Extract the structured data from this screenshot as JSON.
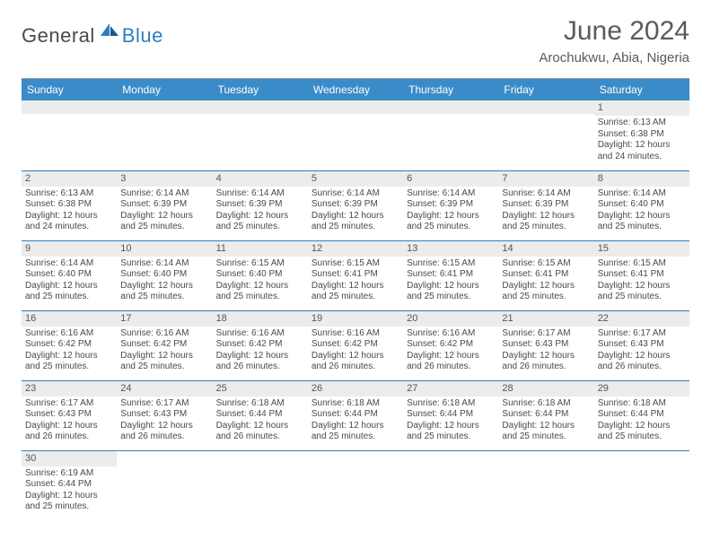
{
  "logo": {
    "dark": "General",
    "blue": "Blue"
  },
  "title": "June 2024",
  "subtitle": "Arochukwu, Abia, Nigeria",
  "colors": {
    "headerBg": "#3b8bc8",
    "headerText": "#ffffff",
    "borderBlue": "#2f7dc0",
    "dayNumBg": "#ececec",
    "bodyText": "#4a4a4a"
  },
  "dayHeaders": [
    "Sunday",
    "Monday",
    "Tuesday",
    "Wednesday",
    "Thursday",
    "Friday",
    "Saturday"
  ],
  "weeks": [
    [
      null,
      null,
      null,
      null,
      null,
      null,
      {
        "n": "1",
        "sr": "6:13 AM",
        "ss": "6:38 PM",
        "dl": "12 hours and 24 minutes."
      }
    ],
    [
      {
        "n": "2",
        "sr": "6:13 AM",
        "ss": "6:38 PM",
        "dl": "12 hours and 24 minutes."
      },
      {
        "n": "3",
        "sr": "6:14 AM",
        "ss": "6:39 PM",
        "dl": "12 hours and 25 minutes."
      },
      {
        "n": "4",
        "sr": "6:14 AM",
        "ss": "6:39 PM",
        "dl": "12 hours and 25 minutes."
      },
      {
        "n": "5",
        "sr": "6:14 AM",
        "ss": "6:39 PM",
        "dl": "12 hours and 25 minutes."
      },
      {
        "n": "6",
        "sr": "6:14 AM",
        "ss": "6:39 PM",
        "dl": "12 hours and 25 minutes."
      },
      {
        "n": "7",
        "sr": "6:14 AM",
        "ss": "6:39 PM",
        "dl": "12 hours and 25 minutes."
      },
      {
        "n": "8",
        "sr": "6:14 AM",
        "ss": "6:40 PM",
        "dl": "12 hours and 25 minutes."
      }
    ],
    [
      {
        "n": "9",
        "sr": "6:14 AM",
        "ss": "6:40 PM",
        "dl": "12 hours and 25 minutes."
      },
      {
        "n": "10",
        "sr": "6:14 AM",
        "ss": "6:40 PM",
        "dl": "12 hours and 25 minutes."
      },
      {
        "n": "11",
        "sr": "6:15 AM",
        "ss": "6:40 PM",
        "dl": "12 hours and 25 minutes."
      },
      {
        "n": "12",
        "sr": "6:15 AM",
        "ss": "6:41 PM",
        "dl": "12 hours and 25 minutes."
      },
      {
        "n": "13",
        "sr": "6:15 AM",
        "ss": "6:41 PM",
        "dl": "12 hours and 25 minutes."
      },
      {
        "n": "14",
        "sr": "6:15 AM",
        "ss": "6:41 PM",
        "dl": "12 hours and 25 minutes."
      },
      {
        "n": "15",
        "sr": "6:15 AM",
        "ss": "6:41 PM",
        "dl": "12 hours and 25 minutes."
      }
    ],
    [
      {
        "n": "16",
        "sr": "6:16 AM",
        "ss": "6:42 PM",
        "dl": "12 hours and 25 minutes."
      },
      {
        "n": "17",
        "sr": "6:16 AM",
        "ss": "6:42 PM",
        "dl": "12 hours and 25 minutes."
      },
      {
        "n": "18",
        "sr": "6:16 AM",
        "ss": "6:42 PM",
        "dl": "12 hours and 26 minutes."
      },
      {
        "n": "19",
        "sr": "6:16 AM",
        "ss": "6:42 PM",
        "dl": "12 hours and 26 minutes."
      },
      {
        "n": "20",
        "sr": "6:16 AM",
        "ss": "6:42 PM",
        "dl": "12 hours and 26 minutes."
      },
      {
        "n": "21",
        "sr": "6:17 AM",
        "ss": "6:43 PM",
        "dl": "12 hours and 26 minutes."
      },
      {
        "n": "22",
        "sr": "6:17 AM",
        "ss": "6:43 PM",
        "dl": "12 hours and 26 minutes."
      }
    ],
    [
      {
        "n": "23",
        "sr": "6:17 AM",
        "ss": "6:43 PM",
        "dl": "12 hours and 26 minutes."
      },
      {
        "n": "24",
        "sr": "6:17 AM",
        "ss": "6:43 PM",
        "dl": "12 hours and 26 minutes."
      },
      {
        "n": "25",
        "sr": "6:18 AM",
        "ss": "6:44 PM",
        "dl": "12 hours and 26 minutes."
      },
      {
        "n": "26",
        "sr": "6:18 AM",
        "ss": "6:44 PM",
        "dl": "12 hours and 25 minutes."
      },
      {
        "n": "27",
        "sr": "6:18 AM",
        "ss": "6:44 PM",
        "dl": "12 hours and 25 minutes."
      },
      {
        "n": "28",
        "sr": "6:18 AM",
        "ss": "6:44 PM",
        "dl": "12 hours and 25 minutes."
      },
      {
        "n": "29",
        "sr": "6:18 AM",
        "ss": "6:44 PM",
        "dl": "12 hours and 25 minutes."
      }
    ],
    [
      {
        "n": "30",
        "sr": "6:19 AM",
        "ss": "6:44 PM",
        "dl": "12 hours and 25 minutes."
      },
      null,
      null,
      null,
      null,
      null,
      null
    ]
  ],
  "labels": {
    "sunrise": "Sunrise:",
    "sunset": "Sunset:",
    "daylight": "Daylight:"
  }
}
